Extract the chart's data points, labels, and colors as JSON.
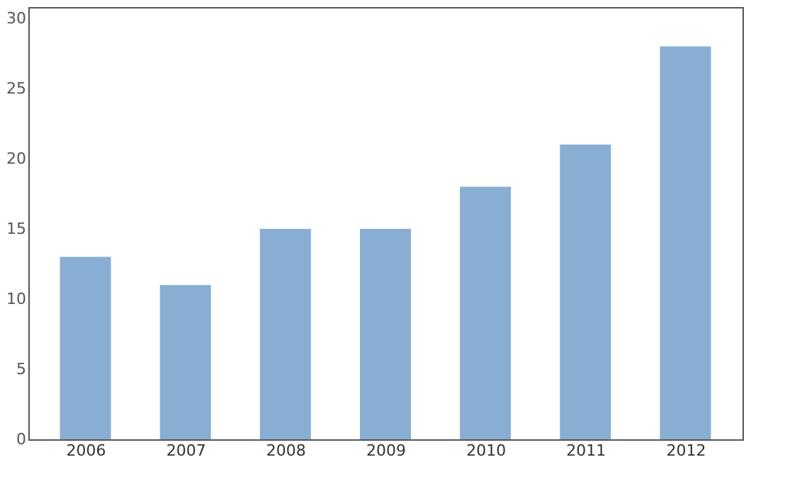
{
  "chart_data": {
    "type": "bar",
    "categories": [
      "2006",
      "2007",
      "2008",
      "2009",
      "2010",
      "2011",
      "2012"
    ],
    "values": [
      13,
      11,
      15,
      15,
      18,
      21,
      28
    ],
    "color": "#88aed3",
    "ylim": [
      0,
      30.8
    ],
    "yticks": [
      0,
      5,
      10,
      15,
      20,
      25,
      30
    ],
    "grid": false
  }
}
